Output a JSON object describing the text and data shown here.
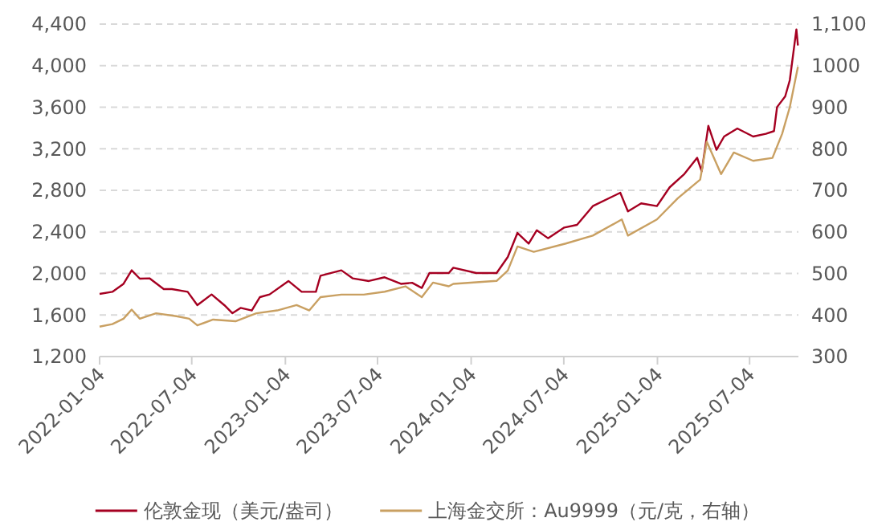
{
  "chart_data": {
    "type": "line",
    "xlim": [
      "2022-01-04",
      "2025-10-08"
    ],
    "xticks": [
      "2022-01-04",
      "2022-07-04",
      "2023-01-04",
      "2023-07-04",
      "2024-01-04",
      "2024-07-04",
      "2025-01-04",
      "2025-07-04"
    ],
    "ylim": [
      1200,
      4400
    ],
    "yticks": [
      {
        "value": 1200,
        "label": "1,200"
      },
      {
        "value": 1600,
        "label": "1,600"
      },
      {
        "value": 2000,
        "label": "2,000"
      },
      {
        "value": 2400,
        "label": "2,400"
      },
      {
        "value": 2800,
        "label": "2,800"
      },
      {
        "value": 3200,
        "label": "3,200"
      },
      {
        "value": 3600,
        "label": "3,600"
      },
      {
        "value": 4000,
        "label": "4,000"
      },
      {
        "value": 4400,
        "label": "4,400"
      }
    ],
    "y2lim": [
      300,
      1100
    ],
    "y2ticks": [
      300,
      400,
      500,
      600,
      700,
      800,
      900,
      1000,
      {
        "value": 1100,
        "label": "1,100"
      }
    ],
    "grid": "y",
    "legend": "bottom",
    "line_style": "solid",
    "marker": "none",
    "series": [
      {
        "name": "伦敦金现（美元/盎司）",
        "color": "#a50021",
        "x": [
          "2022-01-04",
          "2022-01-29",
          "2022-02-20",
          "2022-03-08",
          "2022-03-24",
          "2022-04-12",
          "2022-05-10",
          "2022-05-26",
          "2022-06-26",
          "2022-07-15",
          "2022-08-12",
          "2022-09-06",
          "2022-09-22",
          "2022-10-08",
          "2022-10-30",
          "2022-11-15",
          "2022-12-04",
          "2023-01-10",
          "2023-02-05",
          "2023-03-05",
          "2023-03-14",
          "2023-04-24",
          "2023-05-16",
          "2023-06-17",
          "2023-07-18",
          "2023-08-19",
          "2023-09-10",
          "2023-09-29",
          "2023-10-14",
          "2023-11-21",
          "2023-11-30",
          "2024-01-14",
          "2024-02-23",
          "2024-03-16",
          "2024-04-04",
          "2024-04-26",
          "2024-05-12",
          "2024-06-03",
          "2024-07-05",
          "2024-07-30",
          "2024-08-30",
          "2024-10-23",
          "2024-11-07",
          "2024-12-03",
          "2025-01-03",
          "2025-01-28",
          "2025-02-26",
          "2025-03-23",
          "2025-04-01",
          "2025-04-14",
          "2025-04-30",
          "2025-05-15",
          "2025-06-10",
          "2025-07-11",
          "2025-08-05",
          "2025-08-21",
          "2025-08-27",
          "2025-09-12",
          "2025-09-21",
          "2025-10-04",
          "2025-10-07"
        ],
        "values": [
          1803,
          1823,
          1900,
          2030,
          1950,
          1953,
          1849,
          1849,
          1823,
          1695,
          1798,
          1695,
          1617,
          1668,
          1643,
          1772,
          1798,
          1927,
          1823,
          1823,
          1978,
          2030,
          1953,
          1927,
          1963,
          1900,
          1910,
          1860,
          2004,
          2004,
          2055,
          2004,
          2004,
          2158,
          2390,
          2287,
          2416,
          2339,
          2442,
          2468,
          2648,
          2777,
          2597,
          2674,
          2648,
          2829,
          2958,
          3113,
          2983,
          3421,
          3190,
          3318,
          3395,
          3318,
          3344,
          3370,
          3601,
          3704,
          3859,
          4349,
          4194
        ]
      },
      {
        "name": "上海金交所：Au9999（元/克，右轴）",
        "color": "#c9a062",
        "axis": "y2",
        "x": [
          "2022-01-04",
          "2022-01-29",
          "2022-02-20",
          "2022-03-08",
          "2022-03-24",
          "2022-04-25",
          "2022-06-04",
          "2022-06-29",
          "2022-07-15",
          "2022-08-15",
          "2022-09-28",
          "2022-11-08",
          "2022-12-19",
          "2023-01-26",
          "2023-02-20",
          "2023-03-14",
          "2023-04-24",
          "2023-06-07",
          "2023-07-18",
          "2023-08-28",
          "2023-09-29",
          "2023-10-21",
          "2023-11-21",
          "2023-11-30",
          "2024-02-23",
          "2024-03-16",
          "2024-04-04",
          "2024-05-06",
          "2024-07-08",
          "2024-08-30",
          "2024-10-26",
          "2024-11-07",
          "2025-01-03",
          "2025-02-13",
          "2025-03-29",
          "2025-04-11",
          "2025-05-09",
          "2025-06-03",
          "2025-07-11",
          "2025-08-18",
          "2025-09-06",
          "2025-09-21",
          "2025-10-07"
        ],
        "values": [
          372,
          378,
          391,
          413,
          391,
          404,
          397,
          391,
          375,
          389,
          385,
          404,
          411,
          424,
          411,
          443,
          449,
          449,
          456,
          469,
          443,
          478,
          469,
          475,
          482,
          507,
          565,
          552,
          572,
          591,
          630,
          591,
          630,
          681,
          726,
          817,
          739,
          791,
          771,
          778,
          836,
          900,
          997
        ]
      }
    ]
  }
}
